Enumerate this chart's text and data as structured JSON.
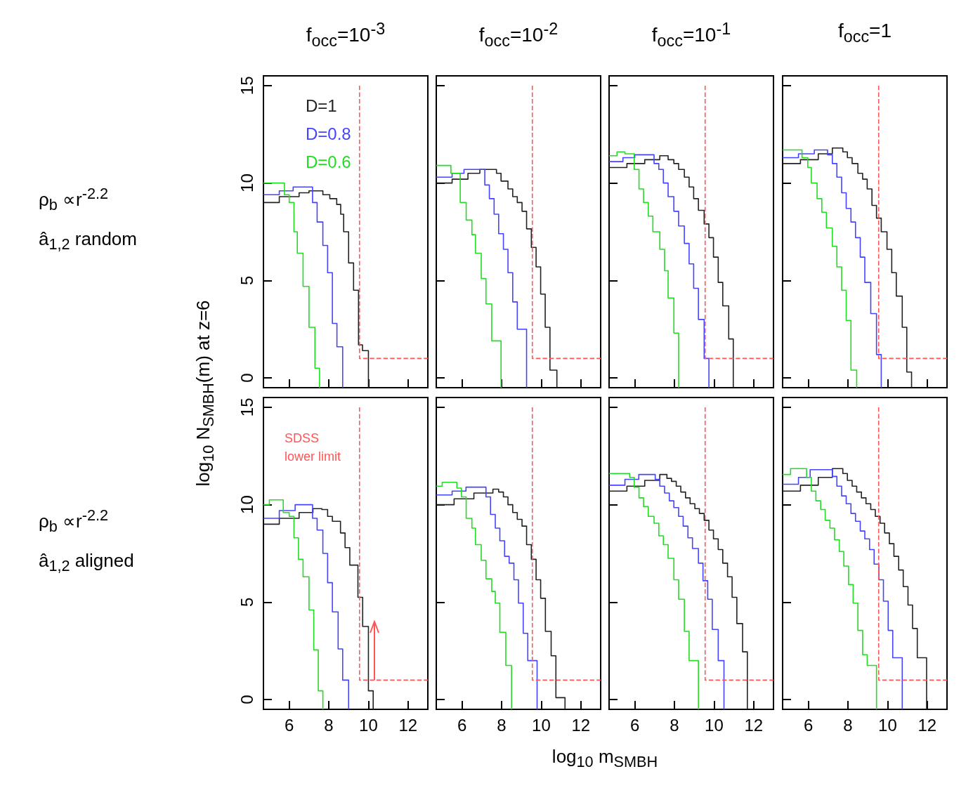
{
  "chart_data": [
    {
      "type": "step",
      "title": "f$_{occ}$=10$^{-3}$",
      "ylabel": "log$_{10}$ N$_{SMBH}$(m) at z=6",
      "annotations": [
        "ρ$_{b}$ ∝r$^{-2.2}$",
        "â$_{1,2}$ random"
      ],
      "xlim": [
        4.7,
        13
      ],
      "xticks": [
        6,
        8,
        10,
        12
      ],
      "ylim": [
        -0.5,
        15.5
      ],
      "yticks": [
        0,
        5,
        10,
        15
      ],
      "tick_labels": "y",
      "series": [
        {
          "name": "D=1",
          "color": "#222222",
          "x": [
            4.7,
            5.5,
            6.5,
            7.0,
            7.7,
            8.05,
            8.4,
            8.6,
            8.75,
            9.0,
            9.25,
            9.5,
            9.7,
            10.0
          ],
          "values": [
            9.0,
            9.3,
            9.5,
            9.6,
            9.4,
            9.2,
            8.9,
            8.4,
            7.5,
            5.9,
            4.5,
            1.7,
            1.4,
            -0.5
          ]
        },
        {
          "name": "D=0.8",
          "color": "#4444ff",
          "x": [
            4.7,
            5.5,
            6.2,
            7.18,
            7.41,
            7.7,
            7.94,
            8.18,
            8.41,
            8.7
          ],
          "values": [
            9.4,
            9.6,
            9.8,
            9.0,
            8.0,
            6.8,
            5.4,
            2.8,
            1.6,
            -0.5
          ]
        },
        {
          "name": "D=0.6",
          "color": "#22dd22",
          "x": [
            4.7,
            5.76,
            6.0,
            6.24,
            6.41,
            6.7,
            7.0,
            7.3,
            7.53
          ],
          "values": [
            10.0,
            9.4,
            9.0,
            7.5,
            6.4,
            4.7,
            2.6,
            0.5,
            -0.5
          ]
        },
        {
          "type": "line",
          "color": "#ff5555",
          "line_style": "dashed",
          "x": [
            9.55,
            9.55,
            13
          ],
          "values": [
            15,
            1,
            1
          ]
        }
      ]
    },
    {
      "type": "step",
      "title": "f$_{occ}$=10$^{-2}$",
      "xlim": [
        4.7,
        13
      ],
      "xticks": [
        6,
        8,
        10,
        12
      ],
      "ylim": [
        -0.5,
        15.5
      ],
      "yticks": [
        0,
        5,
        10,
        15
      ],
      "tick_labels": false,
      "series": [
        {
          "color": "#222222",
          "x": [
            4.7,
            5.5,
            6.3,
            6.9,
            7.74,
            7.97,
            8.32,
            8.56,
            8.79,
            9.03,
            9.26,
            9.5,
            9.74,
            9.97,
            10.2,
            10.44,
            10.79
          ],
          "values": [
            10.0,
            10.2,
            10.5,
            10.7,
            10.5,
            10.1,
            9.7,
            9.3,
            9.0,
            8.55,
            7.65,
            6.7,
            5.7,
            4.3,
            2.6,
            0.4,
            -0.5
          ]
        },
        {
          "color": "#4444ff",
          "x": [
            4.7,
            5.5,
            6.1,
            7.15,
            7.38,
            7.62,
            7.85,
            8.09,
            8.32,
            8.56,
            8.79,
            9.26
          ],
          "values": [
            10.3,
            10.5,
            10.7,
            9.9,
            9.2,
            8.4,
            7.4,
            6.6,
            5.4,
            3.9,
            2.5,
            -0.5
          ]
        },
        {
          "color": "#22dd22",
          "x": [
            4.7,
            5.44,
            5.91,
            6.21,
            6.5,
            6.68,
            6.97,
            7.21,
            7.5,
            7.97
          ],
          "values": [
            10.9,
            10.5,
            9.0,
            8.1,
            7.35,
            6.4,
            5.1,
            3.8,
            1.9,
            -0.5
          ]
        },
        {
          "type": "line",
          "color": "#ff5555",
          "line_style": "dashed",
          "x": [
            9.55,
            9.55,
            13
          ],
          "values": [
            15,
            1,
            1
          ]
        }
      ]
    },
    {
      "type": "step",
      "title": "f$_{occ}$=10$^{-1}$",
      "xlim": [
        4.7,
        13
      ],
      "xticks": [
        6,
        8,
        10,
        12
      ],
      "ylim": [
        -0.5,
        15.5
      ],
      "yticks": [
        0,
        5,
        10,
        15
      ],
      "tick_labels": false,
      "series": [
        {
          "color": "#222222",
          "x": [
            4.7,
            5.6,
            6.5,
            7.26,
            7.68,
            7.97,
            8.21,
            8.5,
            8.74,
            8.97,
            9.21,
            9.5,
            9.74,
            9.97,
            10.21,
            10.44,
            10.74,
            10.97
          ],
          "values": [
            10.8,
            11.0,
            11.2,
            11.4,
            11.2,
            11.0,
            10.7,
            10.3,
            9.8,
            9.2,
            8.6,
            7.9,
            7.2,
            6.2,
            4.9,
            3.7,
            2.0,
            -0.5
          ]
        },
        {
          "color": "#4444ff",
          "x": [
            4.7,
            5.4,
            6.0,
            6.97,
            7.21,
            7.44,
            7.68,
            7.97,
            8.21,
            8.5,
            8.74,
            8.97,
            9.21,
            9.5,
            9.74
          ],
          "values": [
            11.1,
            11.3,
            11.45,
            11.0,
            10.7,
            10.0,
            9.3,
            8.55,
            7.8,
            6.9,
            5.85,
            4.6,
            3.0,
            1.0,
            -0.5
          ]
        },
        {
          "color": "#22dd22",
          "x": [
            4.7,
            5.1,
            5.5,
            5.97,
            6.21,
            6.44,
            6.68,
            6.91,
            7.26,
            7.5,
            7.68,
            7.97,
            8.21
          ],
          "values": [
            11.4,
            11.6,
            11.5,
            10.7,
            9.7,
            9.0,
            8.3,
            7.5,
            6.6,
            5.5,
            4.1,
            2.3,
            -0.5
          ]
        },
        {
          "type": "line",
          "color": "#ff5555",
          "line_style": "dashed",
          "x": [
            9.55,
            9.55,
            13
          ],
          "values": [
            15,
            1,
            1
          ]
        }
      ]
    },
    {
      "type": "step",
      "title": "f$_{occ}$=1",
      "xlim": [
        4.7,
        13
      ],
      "xticks": [
        6,
        8,
        10,
        12
      ],
      "ylim": [
        -0.5,
        15.5
      ],
      "yticks": [
        0,
        5,
        10,
        15
      ],
      "tick_labels": false,
      "series": [
        {
          "color": "#222222",
          "x": [
            4.7,
            5.6,
            6.5,
            7.21,
            7.74,
            7.97,
            8.21,
            8.5,
            8.74,
            8.97,
            9.21,
            9.44,
            9.68,
            9.97,
            10.21,
            10.44,
            10.74,
            10.97,
            11.21
          ],
          "values": [
            11.0,
            11.2,
            11.5,
            11.8,
            11.6,
            11.3,
            11.0,
            10.5,
            10.2,
            9.7,
            8.85,
            8.2,
            7.5,
            6.6,
            5.4,
            4.2,
            2.6,
            0.3,
            -0.5
          ]
        },
        {
          "color": "#4444ff",
          "x": [
            4.7,
            5.5,
            6.3,
            6.97,
            7.21,
            7.44,
            7.68,
            7.91,
            8.15,
            8.38,
            8.62,
            8.85,
            9.15,
            9.44,
            9.68
          ],
          "values": [
            11.3,
            11.5,
            11.7,
            11.45,
            11.0,
            10.3,
            9.5,
            8.7,
            8.0,
            7.2,
            6.2,
            4.9,
            3.3,
            1.2,
            -0.5
          ]
        },
        {
          "color": "#22dd22",
          "x": [
            4.7,
            5.68,
            5.97,
            6.15,
            6.44,
            6.68,
            6.91,
            7.21,
            7.44,
            7.68,
            7.91,
            8.15,
            8.44
          ],
          "values": [
            11.7,
            11.3,
            10.8,
            10.0,
            9.2,
            8.5,
            7.7,
            6.75,
            5.7,
            4.5,
            2.95,
            0.4,
            -0.5
          ]
        },
        {
          "type": "line",
          "color": "#ff5555",
          "line_style": "dashed",
          "x": [
            9.55,
            9.55,
            13
          ],
          "values": [
            15,
            1,
            1
          ]
        }
      ]
    },
    {
      "type": "step",
      "annotations": [
        "ρ$_{b}$ ∝r$^{-2.2}$",
        "â$_{1,2}$ aligned",
        "SDSS\nlower limit"
      ],
      "xlim": [
        4.7,
        13
      ],
      "xticks": [
        6,
        8,
        10,
        12
      ],
      "ylim": [
        -0.5,
        15.5
      ],
      "yticks": [
        0,
        5,
        10,
        15
      ],
      "series": [
        {
          "color": "#222222",
          "x": [
            4.7,
            5.5,
            6.5,
            7.2,
            7.65,
            7.94,
            8.18,
            8.59,
            8.82,
            9.06,
            9.47,
            9.71,
            10.0,
            10.24
          ],
          "values": [
            9.0,
            9.3,
            9.6,
            9.8,
            9.75,
            9.4,
            9.15,
            8.55,
            7.8,
            6.9,
            5.25,
            3.75,
            0.45,
            -0.5
          ]
        },
        {
          "color": "#4444ff",
          "x": [
            4.7,
            5.5,
            6.3,
            7.18,
            7.41,
            7.7,
            7.94,
            8.18,
            8.47,
            8.7,
            9.0
          ],
          "values": [
            9.3,
            9.7,
            10.0,
            9.3,
            8.7,
            7.5,
            6.0,
            4.5,
            2.6,
            1.0,
            -0.5
          ]
        },
        {
          "color": "#22dd22",
          "x": [
            4.7,
            5.0,
            5.7,
            6.0,
            6.24,
            6.47,
            6.7,
            7.0,
            7.24,
            7.47,
            7.7
          ],
          "values": [
            10.0,
            10.25,
            9.6,
            9.4,
            8.3,
            7.2,
            6.3,
            4.6,
            2.55,
            0.45,
            -0.5
          ]
        },
        {
          "type": "line",
          "color": "#ff5555",
          "line_style": "dashed",
          "x": [
            9.55,
            9.55,
            13
          ],
          "values": [
            15,
            1,
            1
          ]
        }
      ]
    },
    {
      "type": "step",
      "xlim": [
        4.7,
        13
      ],
      "xticks": [
        6,
        8,
        10,
        12
      ],
      "ylim": [
        -0.5,
        15.5
      ],
      "yticks": [
        0,
        5,
        10,
        15
      ],
      "tick_labels": "x",
      "series": [
        {
          "color": "#222222",
          "x": [
            4.7,
            5.6,
            6.6,
            7.56,
            7.85,
            8.09,
            8.32,
            8.56,
            8.79,
            9.03,
            9.26,
            9.5,
            9.74,
            9.97,
            10.21,
            10.5,
            10.74,
            11.2
          ],
          "values": [
            10.0,
            10.3,
            10.6,
            10.8,
            10.65,
            10.4,
            10.0,
            9.6,
            9.25,
            8.9,
            7.95,
            7.2,
            6.15,
            5.2,
            3.5,
            2.25,
            0.1,
            -0.5
          ]
        },
        {
          "color": "#4444ff",
          "x": [
            4.7,
            5.5,
            6.2,
            7.21,
            7.44,
            7.68,
            7.91,
            8.15,
            8.38,
            8.62,
            8.85,
            9.09,
            9.32,
            9.79
          ],
          "values": [
            10.5,
            10.7,
            10.9,
            10.4,
            9.5,
            8.8,
            8.15,
            7.35,
            7.0,
            6.15,
            4.95,
            3.4,
            2.0,
            -0.5
          ]
        },
        {
          "color": "#22dd22",
          "x": [
            4.7,
            5.0,
            5.74,
            5.97,
            6.21,
            6.5,
            6.68,
            6.97,
            7.21,
            7.5,
            7.68,
            7.91,
            8.21,
            8.5
          ],
          "values": [
            10.95,
            11.15,
            10.85,
            10.4,
            9.3,
            8.8,
            7.95,
            7.15,
            6.2,
            5.55,
            4.95,
            3.45,
            1.75,
            -0.5
          ]
        },
        {
          "type": "line",
          "color": "#ff5555",
          "line_style": "dashed",
          "x": [
            9.55,
            9.55,
            13
          ],
          "values": [
            15,
            1,
            1
          ]
        }
      ]
    },
    {
      "type": "step",
      "xlabel": "log$_{10}$ m$_{SMBH}$",
      "xlim": [
        4.7,
        13
      ],
      "xticks": [
        6,
        8,
        10,
        12
      ],
      "ylim": [
        -0.5,
        15.5
      ],
      "yticks": [
        0,
        5,
        10,
        15
      ],
      "tick_labels": "x",
      "series": [
        {
          "color": "#222222",
          "x": [
            4.7,
            5.6,
            6.5,
            7.26,
            7.62,
            7.85,
            8.09,
            8.32,
            8.56,
            8.79,
            9.03,
            9.26,
            9.5,
            9.74,
            9.97,
            10.21,
            10.44,
            10.68,
            10.91,
            11.15,
            11.44,
            11.68
          ],
          "values": [
            10.7,
            10.95,
            11.25,
            11.55,
            11.35,
            11.2,
            10.95,
            10.65,
            10.35,
            10.05,
            9.8,
            9.55,
            9.2,
            8.7,
            8.25,
            7.7,
            7.0,
            6.3,
            5.25,
            3.9,
            2.45,
            -0.5
          ]
        },
        {
          "color": "#4444ff",
          "x": [
            4.7,
            5.5,
            6.2,
            7.03,
            7.26,
            7.5,
            7.74,
            7.97,
            8.21,
            8.44,
            8.68,
            8.91,
            9.21,
            9.44,
            9.68,
            9.91,
            10.21,
            10.5
          ],
          "values": [
            11.0,
            11.3,
            11.55,
            11.3,
            10.95,
            10.6,
            10.2,
            9.85,
            9.4,
            8.9,
            8.3,
            7.75,
            7.0,
            6.1,
            5.15,
            3.6,
            2.0,
            -0.5
          ]
        },
        {
          "color": "#22dd22",
          "x": [
            4.7,
            5.74,
            5.97,
            6.21,
            6.44,
            6.68,
            6.97,
            7.21,
            7.44,
            7.68,
            7.97,
            8.21,
            8.5,
            8.74,
            9.21
          ],
          "values": [
            11.6,
            11.4,
            10.9,
            10.35,
            9.9,
            9.4,
            9.05,
            8.4,
            7.95,
            7.25,
            6.15,
            5.15,
            3.5,
            2.0,
            -0.5
          ]
        },
        {
          "type": "line",
          "color": "#ff5555",
          "line_style": "dashed",
          "x": [
            9.55,
            9.55,
            13
          ],
          "values": [
            15,
            1,
            1
          ]
        }
      ]
    },
    {
      "type": "step",
      "xlim": [
        4.7,
        13
      ],
      "xticks": [
        6,
        8,
        10,
        12
      ],
      "ylim": [
        -0.5,
        15.5
      ],
      "yticks": [
        0,
        5,
        10,
        15
      ],
      "tick_labels": "x",
      "series": [
        {
          "color": "#222222",
          "x": [
            4.7,
            5.6,
            6.5,
            7.21,
            7.74,
            7.97,
            8.21,
            8.44,
            8.68,
            8.91,
            9.15,
            9.38,
            9.62,
            9.85,
            10.09,
            10.32,
            10.56,
            10.79,
            11.03,
            11.26,
            11.5,
            11.97
          ],
          "values": [
            10.7,
            11.0,
            11.4,
            11.85,
            11.6,
            11.25,
            10.95,
            10.65,
            10.35,
            10.05,
            9.75,
            9.4,
            9.05,
            8.55,
            8.0,
            7.35,
            6.65,
            5.8,
            4.85,
            3.65,
            2.15,
            -0.5
          ]
        },
        {
          "color": "#4444ff",
          "x": [
            4.7,
            5.5,
            6.09,
            7.21,
            7.44,
            7.68,
            7.91,
            8.15,
            8.38,
            8.62,
            8.85,
            9.09,
            9.32,
            9.56,
            9.79,
            10.03,
            10.26,
            10.74
          ],
          "values": [
            11.05,
            11.4,
            11.8,
            11.45,
            10.95,
            10.45,
            10.05,
            9.55,
            9.15,
            8.65,
            8.25,
            7.7,
            6.95,
            6.15,
            5.05,
            3.55,
            2.15,
            -0.5
          ]
        },
        {
          "color": "#22dd22",
          "x": [
            4.7,
            5.1,
            5.91,
            6.15,
            6.38,
            6.62,
            6.85,
            7.09,
            7.32,
            7.56,
            7.79,
            8.03,
            8.26,
            8.5,
            8.74,
            8.97,
            9.44
          ],
          "values": [
            11.55,
            11.85,
            11.4,
            10.7,
            10.2,
            9.75,
            9.2,
            8.8,
            8.2,
            7.6,
            6.85,
            5.9,
            4.95,
            3.55,
            2.3,
            1.75,
            -0.5
          ]
        },
        {
          "type": "line",
          "color": "#ff5555",
          "line_style": "dashed",
          "x": [
            9.55,
            9.55,
            13
          ],
          "values": [
            15,
            1,
            1
          ]
        }
      ]
    }
  ]
}
